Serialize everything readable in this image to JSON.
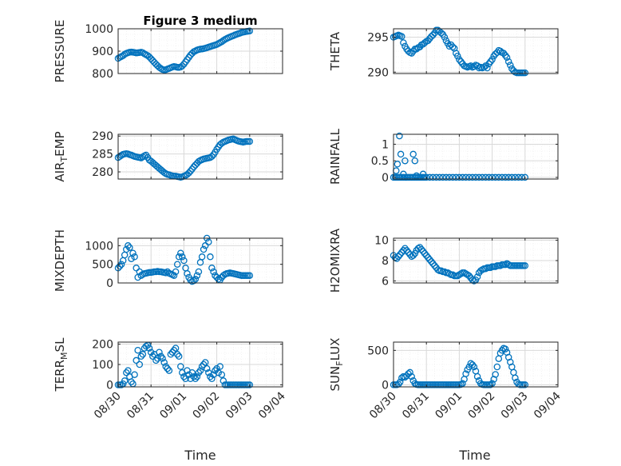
{
  "figure": {
    "title": "Figure 3 medium",
    "xlabel": "Time"
  },
  "style": {
    "marker_color": "#0072BD",
    "axis_color": "#262626",
    "grid_color": "#d9d9d9"
  },
  "x_ticks": [
    "08/30",
    "08/31",
    "09/01",
    "09/02",
    "09/03",
    "09/04"
  ],
  "chart_data": [
    {
      "type": "scatter",
      "id": "pressure",
      "ylabel": "PRESSURE",
      "title": "Figure 3 medium",
      "xlim": [
        "08/30",
        "09/04"
      ],
      "ylim": [
        800,
        1000
      ],
      "yticks": [
        800,
        900,
        1000
      ],
      "grid": true,
      "x": [
        0,
        0.05,
        0.1,
        0.15,
        0.2,
        0.25,
        0.3,
        0.35,
        0.4,
        0.45,
        0.5,
        0.55,
        0.6,
        0.65,
        0.7,
        0.75,
        0.8,
        0.85,
        0.9,
        0.95,
        1.0,
        1.05,
        1.1,
        1.15,
        1.2,
        1.25,
        1.3,
        1.35,
        1.4,
        1.45,
        1.5,
        1.55,
        1.6,
        1.65,
        1.7,
        1.75,
        1.8,
        1.85,
        1.9,
        1.95,
        2.0,
        2.05,
        2.1,
        2.15,
        2.2,
        2.25,
        2.3,
        2.35,
        2.4,
        2.45,
        2.5,
        2.55,
        2.6,
        2.65,
        2.7,
        2.75,
        2.8,
        2.85,
        2.9,
        2.95,
        3.0,
        3.05,
        3.1,
        3.15,
        3.2,
        3.25,
        3.3,
        3.35,
        3.4,
        3.45,
        3.5,
        3.55,
        3.6,
        3.65,
        3.7,
        3.75,
        3.8,
        3.85,
        3.9,
        3.95,
        4.0
      ],
      "values": [
        868,
        872,
        876,
        880,
        886,
        890,
        893,
        895,
        896,
        895,
        894,
        892,
        893,
        894,
        895,
        893,
        888,
        884,
        880,
        874,
        866,
        858,
        850,
        842,
        835,
        828,
        822,
        818,
        816,
        817,
        820,
        823,
        826,
        829,
        831,
        830,
        828,
        827,
        829,
        834,
        842,
        852,
        862,
        872,
        882,
        890,
        897,
        901,
        905,
        907,
        909,
        910,
        911,
        913,
        915,
        918,
        920,
        923,
        925,
        927,
        930,
        934,
        938,
        942,
        947,
        952,
        956,
        960,
        963,
        966,
        969,
        972,
        975,
        978,
        980,
        983,
        985,
        986,
        988,
        989,
        990
      ]
    },
    {
      "type": "scatter",
      "id": "theta",
      "ylabel": "THETA",
      "xlim": [
        "08/30",
        "09/04"
      ],
      "ylim": [
        289.8,
        296.2
      ],
      "yticks": [
        290,
        295
      ],
      "grid": true,
      "x": [
        0,
        0.05,
        0.1,
        0.15,
        0.2,
        0.25,
        0.3,
        0.35,
        0.4,
        0.45,
        0.5,
        0.55,
        0.6,
        0.65,
        0.7,
        0.75,
        0.8,
        0.85,
        0.9,
        0.95,
        1.0,
        1.05,
        1.1,
        1.15,
        1.2,
        1.25,
        1.3,
        1.35,
        1.4,
        1.45,
        1.5,
        1.55,
        1.6,
        1.65,
        1.7,
        1.75,
        1.8,
        1.85,
        1.9,
        1.95,
        2.0,
        2.05,
        2.1,
        2.15,
        2.2,
        2.25,
        2.3,
        2.35,
        2.4,
        2.45,
        2.5,
        2.55,
        2.6,
        2.65,
        2.7,
        2.75,
        2.8,
        2.85,
        2.9,
        2.95,
        3.0,
        3.05,
        3.1,
        3.15,
        3.2,
        3.25,
        3.3,
        3.35,
        3.4,
        3.45,
        3.5,
        3.55,
        3.6,
        3.65,
        3.7,
        3.75,
        3.8,
        3.85,
        3.9,
        3.95,
        4.0
      ],
      "values": [
        295.0,
        295.1,
        295.2,
        295.3,
        295.2,
        295.1,
        294.2,
        293.7,
        293.3,
        293.0,
        292.8,
        292.7,
        293.0,
        293.3,
        293.3,
        293.5,
        293.6,
        293.9,
        294.0,
        294.2,
        294.4,
        294.5,
        294.8,
        295.1,
        295.3,
        295.6,
        296.0,
        296.0,
        295.8,
        295.6,
        295.4,
        295.0,
        294.5,
        294.1,
        293.7,
        293.9,
        293.6,
        293.4,
        292.7,
        292.3,
        291.8,
        291.5,
        291.2,
        290.9,
        290.8,
        290.7,
        290.8,
        290.9,
        290.7,
        290.8,
        291.0,
        290.9,
        290.6,
        290.7,
        290.6,
        290.7,
        290.9,
        290.6,
        291.2,
        291.5,
        291.8,
        292.3,
        292.6,
        292.8,
        293.1,
        293.0,
        292.8,
        292.7,
        292.4,
        292.1,
        291.5,
        291.0,
        290.5,
        290.2,
        290.0,
        289.9,
        289.9,
        289.9,
        289.9,
        289.9,
        289.9
      ]
    },
    {
      "type": "scatter",
      "id": "air_temp",
      "ylabel": "AIR_TEMP",
      "xlim": [
        "08/30",
        "09/04"
      ],
      "ylim": [
        278,
        290.5
      ],
      "yticks": [
        280,
        285,
        290
      ],
      "grid": true,
      "x": [
        0,
        0.05,
        0.1,
        0.15,
        0.2,
        0.25,
        0.3,
        0.35,
        0.4,
        0.45,
        0.5,
        0.55,
        0.6,
        0.65,
        0.7,
        0.75,
        0.8,
        0.85,
        0.9,
        0.95,
        1.0,
        1.05,
        1.1,
        1.15,
        1.2,
        1.25,
        1.3,
        1.35,
        1.4,
        1.45,
        1.5,
        1.55,
        1.6,
        1.65,
        1.7,
        1.75,
        1.8,
        1.85,
        1.9,
        1.95,
        2.0,
        2.05,
        2.1,
        2.15,
        2.2,
        2.25,
        2.3,
        2.35,
        2.4,
        2.45,
        2.5,
        2.55,
        2.6,
        2.65,
        2.7,
        2.75,
        2.8,
        2.85,
        2.9,
        2.95,
        3.0,
        3.05,
        3.1,
        3.15,
        3.2,
        3.25,
        3.3,
        3.35,
        3.4,
        3.45,
        3.5,
        3.55,
        3.6,
        3.65,
        3.7,
        3.75,
        3.8,
        3.85,
        3.9,
        3.95,
        4.0
      ],
      "values": [
        284.0,
        284.3,
        284.6,
        284.9,
        285.0,
        285.1,
        285.0,
        284.8,
        284.7,
        284.5,
        284.3,
        284.2,
        284.1,
        284.0,
        283.9,
        284.2,
        284.5,
        284.7,
        284.0,
        283.3,
        283.0,
        282.6,
        282.2,
        281.8,
        281.4,
        281.0,
        280.6,
        280.2,
        279.8,
        279.5,
        279.3,
        279.2,
        279.0,
        278.9,
        278.8,
        278.8,
        278.7,
        278.6,
        278.5,
        278.6,
        278.8,
        279.0,
        279.3,
        279.7,
        280.2,
        280.8,
        281.4,
        281.9,
        282.4,
        282.9,
        283.2,
        283.4,
        283.6,
        283.7,
        283.8,
        283.9,
        284.0,
        284.3,
        284.8,
        285.5,
        286.3,
        287.0,
        287.6,
        288.0,
        288.3,
        288.5,
        288.7,
        288.9,
        289.0,
        289.1,
        289.2,
        289.0,
        288.8,
        288.6,
        288.5,
        288.4,
        288.3,
        288.4,
        288.5,
        288.5,
        288.5
      ]
    },
    {
      "type": "scatter",
      "id": "rainfall",
      "ylabel": "RAINFALL",
      "xlim": [
        "08/30",
        "09/04"
      ],
      "ylim": [
        -0.05,
        1.3
      ],
      "yticks": [
        0,
        0.5,
        1
      ],
      "ytick_labels": [
        "0",
        "0.5",
        "1"
      ],
      "grid": true,
      "x": [
        0.0,
        0.05,
        0.1,
        0.15,
        0.2,
        0.25,
        0.3,
        0.35,
        0.4,
        0.45,
        0.5,
        0.55,
        0.6,
        0.65,
        0.7,
        0.75,
        0.8,
        0.85,
        0.9,
        0.95,
        1.0,
        1.1,
        1.2,
        1.3,
        1.4,
        1.5,
        1.6,
        1.7,
        1.8,
        1.9,
        2.0,
        2.1,
        2.2,
        2.3,
        2.4,
        2.5,
        2.6,
        2.7,
        2.8,
        2.9,
        3.0,
        3.1,
        3.2,
        3.3,
        3.4,
        3.5,
        3.6,
        3.7,
        3.8,
        3.9,
        4.0,
        0.08,
        0.12,
        0.18,
        0.22,
        0.3,
        0.35,
        0.6,
        0.65,
        0.7,
        0.9
      ],
      "values": [
        0.0,
        0.0,
        0.0,
        0.0,
        0.0,
        0.0,
        0.0,
        0.0,
        0.0,
        0.0,
        0.0,
        0.0,
        0.0,
        0.0,
        0.0,
        0.0,
        0.0,
        0.0,
        0.0,
        0.0,
        0.0,
        0.0,
        0.0,
        0.0,
        0.0,
        0.0,
        0.0,
        0.0,
        0.0,
        0.0,
        0.0,
        0.0,
        0.0,
        0.0,
        0.0,
        0.0,
        0.0,
        0.0,
        0.0,
        0.0,
        0.0,
        0.0,
        0.0,
        0.0,
        0.0,
        0.0,
        0.0,
        0.0,
        0.0,
        0.0,
        0.0,
        0.2,
        0.4,
        1.25,
        0.7,
        0.1,
        0.5,
        0.7,
        0.5,
        0.05,
        0.1
      ]
    },
    {
      "type": "scatter",
      "id": "mixdepth",
      "ylabel": "MIXDEPTH",
      "xlim": [
        "08/30",
        "09/04"
      ],
      "ylim": [
        0,
        1200
      ],
      "yticks": [
        0,
        500,
        1000
      ],
      "grid": true,
      "x": [
        0,
        0.05,
        0.1,
        0.15,
        0.2,
        0.25,
        0.3,
        0.35,
        0.4,
        0.45,
        0.5,
        0.55,
        0.6,
        0.65,
        0.7,
        0.75,
        0.8,
        0.85,
        0.9,
        0.95,
        1.0,
        1.05,
        1.1,
        1.15,
        1.2,
        1.25,
        1.3,
        1.35,
        1.4,
        1.45,
        1.5,
        1.55,
        1.6,
        1.65,
        1.7,
        1.75,
        1.8,
        1.85,
        1.9,
        1.95,
        2.0,
        2.05,
        2.1,
        2.15,
        2.2,
        2.25,
        2.3,
        2.35,
        2.4,
        2.45,
        2.5,
        2.55,
        2.6,
        2.65,
        2.7,
        2.75,
        2.8,
        2.85,
        2.9,
        2.95,
        3.0,
        3.05,
        3.1,
        3.15,
        3.2,
        3.25,
        3.3,
        3.35,
        3.4,
        3.45,
        3.5,
        3.55,
        3.6,
        3.65,
        3.7,
        3.75,
        3.8,
        3.85,
        3.9,
        3.95,
        4.0
      ],
      "values": [
        400,
        450,
        500,
        600,
        750,
        900,
        1000,
        950,
        650,
        800,
        700,
        400,
        150,
        300,
        200,
        230,
        250,
        260,
        270,
        280,
        280,
        290,
        300,
        300,
        310,
        300,
        300,
        290,
        280,
        270,
        300,
        260,
        240,
        220,
        200,
        300,
        500,
        700,
        800,
        700,
        600,
        400,
        250,
        150,
        80,
        40,
        60,
        100,
        200,
        300,
        550,
        700,
        900,
        1000,
        1200,
        1100,
        700,
        400,
        300,
        200,
        150,
        100,
        80,
        150,
        200,
        230,
        250,
        260,
        270,
        260,
        250,
        240,
        230,
        220,
        210,
        200,
        200,
        200,
        200,
        200,
        200
      ]
    },
    {
      "type": "scatter",
      "id": "h2omixra",
      "ylabel": "H2OMIXRA",
      "xlim": [
        "08/30",
        "09/04"
      ],
      "ylim": [
        5.8,
        10.2
      ],
      "yticks": [
        6,
        8,
        10
      ],
      "grid": true,
      "x": [
        0,
        0.05,
        0.1,
        0.15,
        0.2,
        0.25,
        0.3,
        0.35,
        0.4,
        0.45,
        0.5,
        0.55,
        0.6,
        0.65,
        0.7,
        0.75,
        0.8,
        0.85,
        0.9,
        0.95,
        1.0,
        1.05,
        1.1,
        1.15,
        1.2,
        1.25,
        1.3,
        1.35,
        1.4,
        1.45,
        1.5,
        1.55,
        1.6,
        1.65,
        1.7,
        1.75,
        1.8,
        1.85,
        1.9,
        1.95,
        2.0,
        2.05,
        2.1,
        2.15,
        2.2,
        2.25,
        2.3,
        2.35,
        2.4,
        2.45,
        2.5,
        2.55,
        2.6,
        2.65,
        2.7,
        2.75,
        2.8,
        2.85,
        2.9,
        2.95,
        3.0,
        3.05,
        3.1,
        3.15,
        3.2,
        3.25,
        3.3,
        3.35,
        3.4,
        3.45,
        3.5,
        3.55,
        3.6,
        3.65,
        3.7,
        3.75,
        3.8,
        3.85,
        3.9,
        3.95,
        4.0
      ],
      "values": [
        8.5,
        8.3,
        8.2,
        8.4,
        8.6,
        8.8,
        9.0,
        9.2,
        9.0,
        8.8,
        8.6,
        8.4,
        8.5,
        8.7,
        9.0,
        9.2,
        9.3,
        9.1,
        8.9,
        8.7,
        8.5,
        8.3,
        8.1,
        7.9,
        7.7,
        7.5,
        7.3,
        7.1,
        7.0,
        7.0,
        6.9,
        6.9,
        6.8,
        6.8,
        6.7,
        6.6,
        6.6,
        6.5,
        6.5,
        6.5,
        6.6,
        6.7,
        6.8,
        6.8,
        6.7,
        6.6,
        6.5,
        6.3,
        6.1,
        6.0,
        6.1,
        6.4,
        6.8,
        7.0,
        7.1,
        7.2,
        7.2,
        7.3,
        7.3,
        7.3,
        7.4,
        7.4,
        7.4,
        7.5,
        7.5,
        7.5,
        7.6,
        7.6,
        7.6,
        7.7,
        7.6,
        7.5,
        7.5,
        7.5,
        7.5,
        7.5,
        7.5,
        7.5,
        7.5,
        7.5,
        7.5
      ]
    },
    {
      "type": "scatter",
      "id": "terr_msl",
      "ylabel": "TERR_MSL",
      "xlim": [
        "08/30",
        "09/04"
      ],
      "ylim": [
        -10,
        210
      ],
      "yticks": [
        0,
        100,
        200
      ],
      "grid": true,
      "x": [
        0,
        0.05,
        0.1,
        0.15,
        0.2,
        0.25,
        0.3,
        0.35,
        0.4,
        0.45,
        0.5,
        0.55,
        0.6,
        0.65,
        0.7,
        0.75,
        0.8,
        0.85,
        0.9,
        0.95,
        1.0,
        1.05,
        1.1,
        1.15,
        1.2,
        1.25,
        1.3,
        1.35,
        1.4,
        1.45,
        1.5,
        1.55,
        1.6,
        1.65,
        1.7,
        1.75,
        1.8,
        1.85,
        1.9,
        1.95,
        2.0,
        2.05,
        2.1,
        2.15,
        2.2,
        2.25,
        2.3,
        2.35,
        2.4,
        2.45,
        2.5,
        2.55,
        2.6,
        2.65,
        2.7,
        2.75,
        2.8,
        2.85,
        2.9,
        2.95,
        3.0,
        3.05,
        3.1,
        3.15,
        3.2,
        3.25,
        3.3,
        3.35,
        3.4,
        3.45,
        3.5,
        3.55,
        3.6,
        3.65,
        3.7,
        3.75,
        3.8,
        3.85,
        3.9,
        3.95,
        4.0
      ],
      "values": [
        0,
        0,
        0,
        5,
        20,
        60,
        70,
        40,
        15,
        5,
        50,
        120,
        170,
        100,
        140,
        150,
        180,
        190,
        195,
        180,
        160,
        140,
        150,
        120,
        130,
        160,
        140,
        130,
        110,
        90,
        80,
        70,
        150,
        160,
        170,
        180,
        150,
        140,
        90,
        60,
        40,
        30,
        70,
        50,
        30,
        60,
        40,
        30,
        40,
        60,
        70,
        90,
        100,
        110,
        80,
        60,
        40,
        30,
        50,
        70,
        80,
        60,
        90,
        50,
        20,
        0,
        0,
        0,
        0,
        0,
        0,
        0,
        0,
        0,
        0,
        0,
        0,
        0,
        0,
        0,
        0
      ]
    },
    {
      "type": "scatter",
      "id": "sun_flux",
      "ylabel": "SUN_FLUX",
      "xlim": [
        "08/30",
        "09/04"
      ],
      "ylim": [
        -30,
        620
      ],
      "yticks": [
        0,
        500
      ],
      "grid": true,
      "x": [
        0,
        0.05,
        0.1,
        0.15,
        0.2,
        0.25,
        0.3,
        0.35,
        0.4,
        0.45,
        0.5,
        0.55,
        0.6,
        0.65,
        0.7,
        0.75,
        0.8,
        0.85,
        0.9,
        0.95,
        1.0,
        1.05,
        1.1,
        1.15,
        1.2,
        1.25,
        1.3,
        1.35,
        1.4,
        1.45,
        1.5,
        1.55,
        1.6,
        1.65,
        1.7,
        1.75,
        1.8,
        1.85,
        1.9,
        1.95,
        2.0,
        2.05,
        2.1,
        2.15,
        2.2,
        2.25,
        2.3,
        2.35,
        2.4,
        2.45,
        2.5,
        2.55,
        2.6,
        2.65,
        2.7,
        2.75,
        2.8,
        2.85,
        2.9,
        2.95,
        3.0,
        3.05,
        3.1,
        3.15,
        3.2,
        3.25,
        3.3,
        3.35,
        3.4,
        3.45,
        3.5,
        3.55,
        3.6,
        3.65,
        3.7,
        3.75,
        3.8,
        3.85,
        3.9,
        3.95,
        4.0
      ],
      "values": [
        0,
        0,
        0,
        10,
        40,
        100,
        120,
        110,
        130,
        160,
        180,
        120,
        60,
        20,
        5,
        0,
        0,
        0,
        0,
        0,
        0,
        0,
        0,
        0,
        0,
        0,
        0,
        0,
        0,
        0,
        0,
        0,
        0,
        0,
        0,
        0,
        0,
        0,
        0,
        0,
        0,
        5,
        20,
        80,
        160,
        220,
        260,
        310,
        290,
        260,
        200,
        120,
        60,
        20,
        5,
        0,
        0,
        0,
        0,
        0,
        20,
        80,
        150,
        260,
        380,
        460,
        500,
        530,
        520,
        470,
        400,
        330,
        260,
        180,
        100,
        40,
        10,
        0,
        0,
        0,
        0
      ]
    }
  ]
}
